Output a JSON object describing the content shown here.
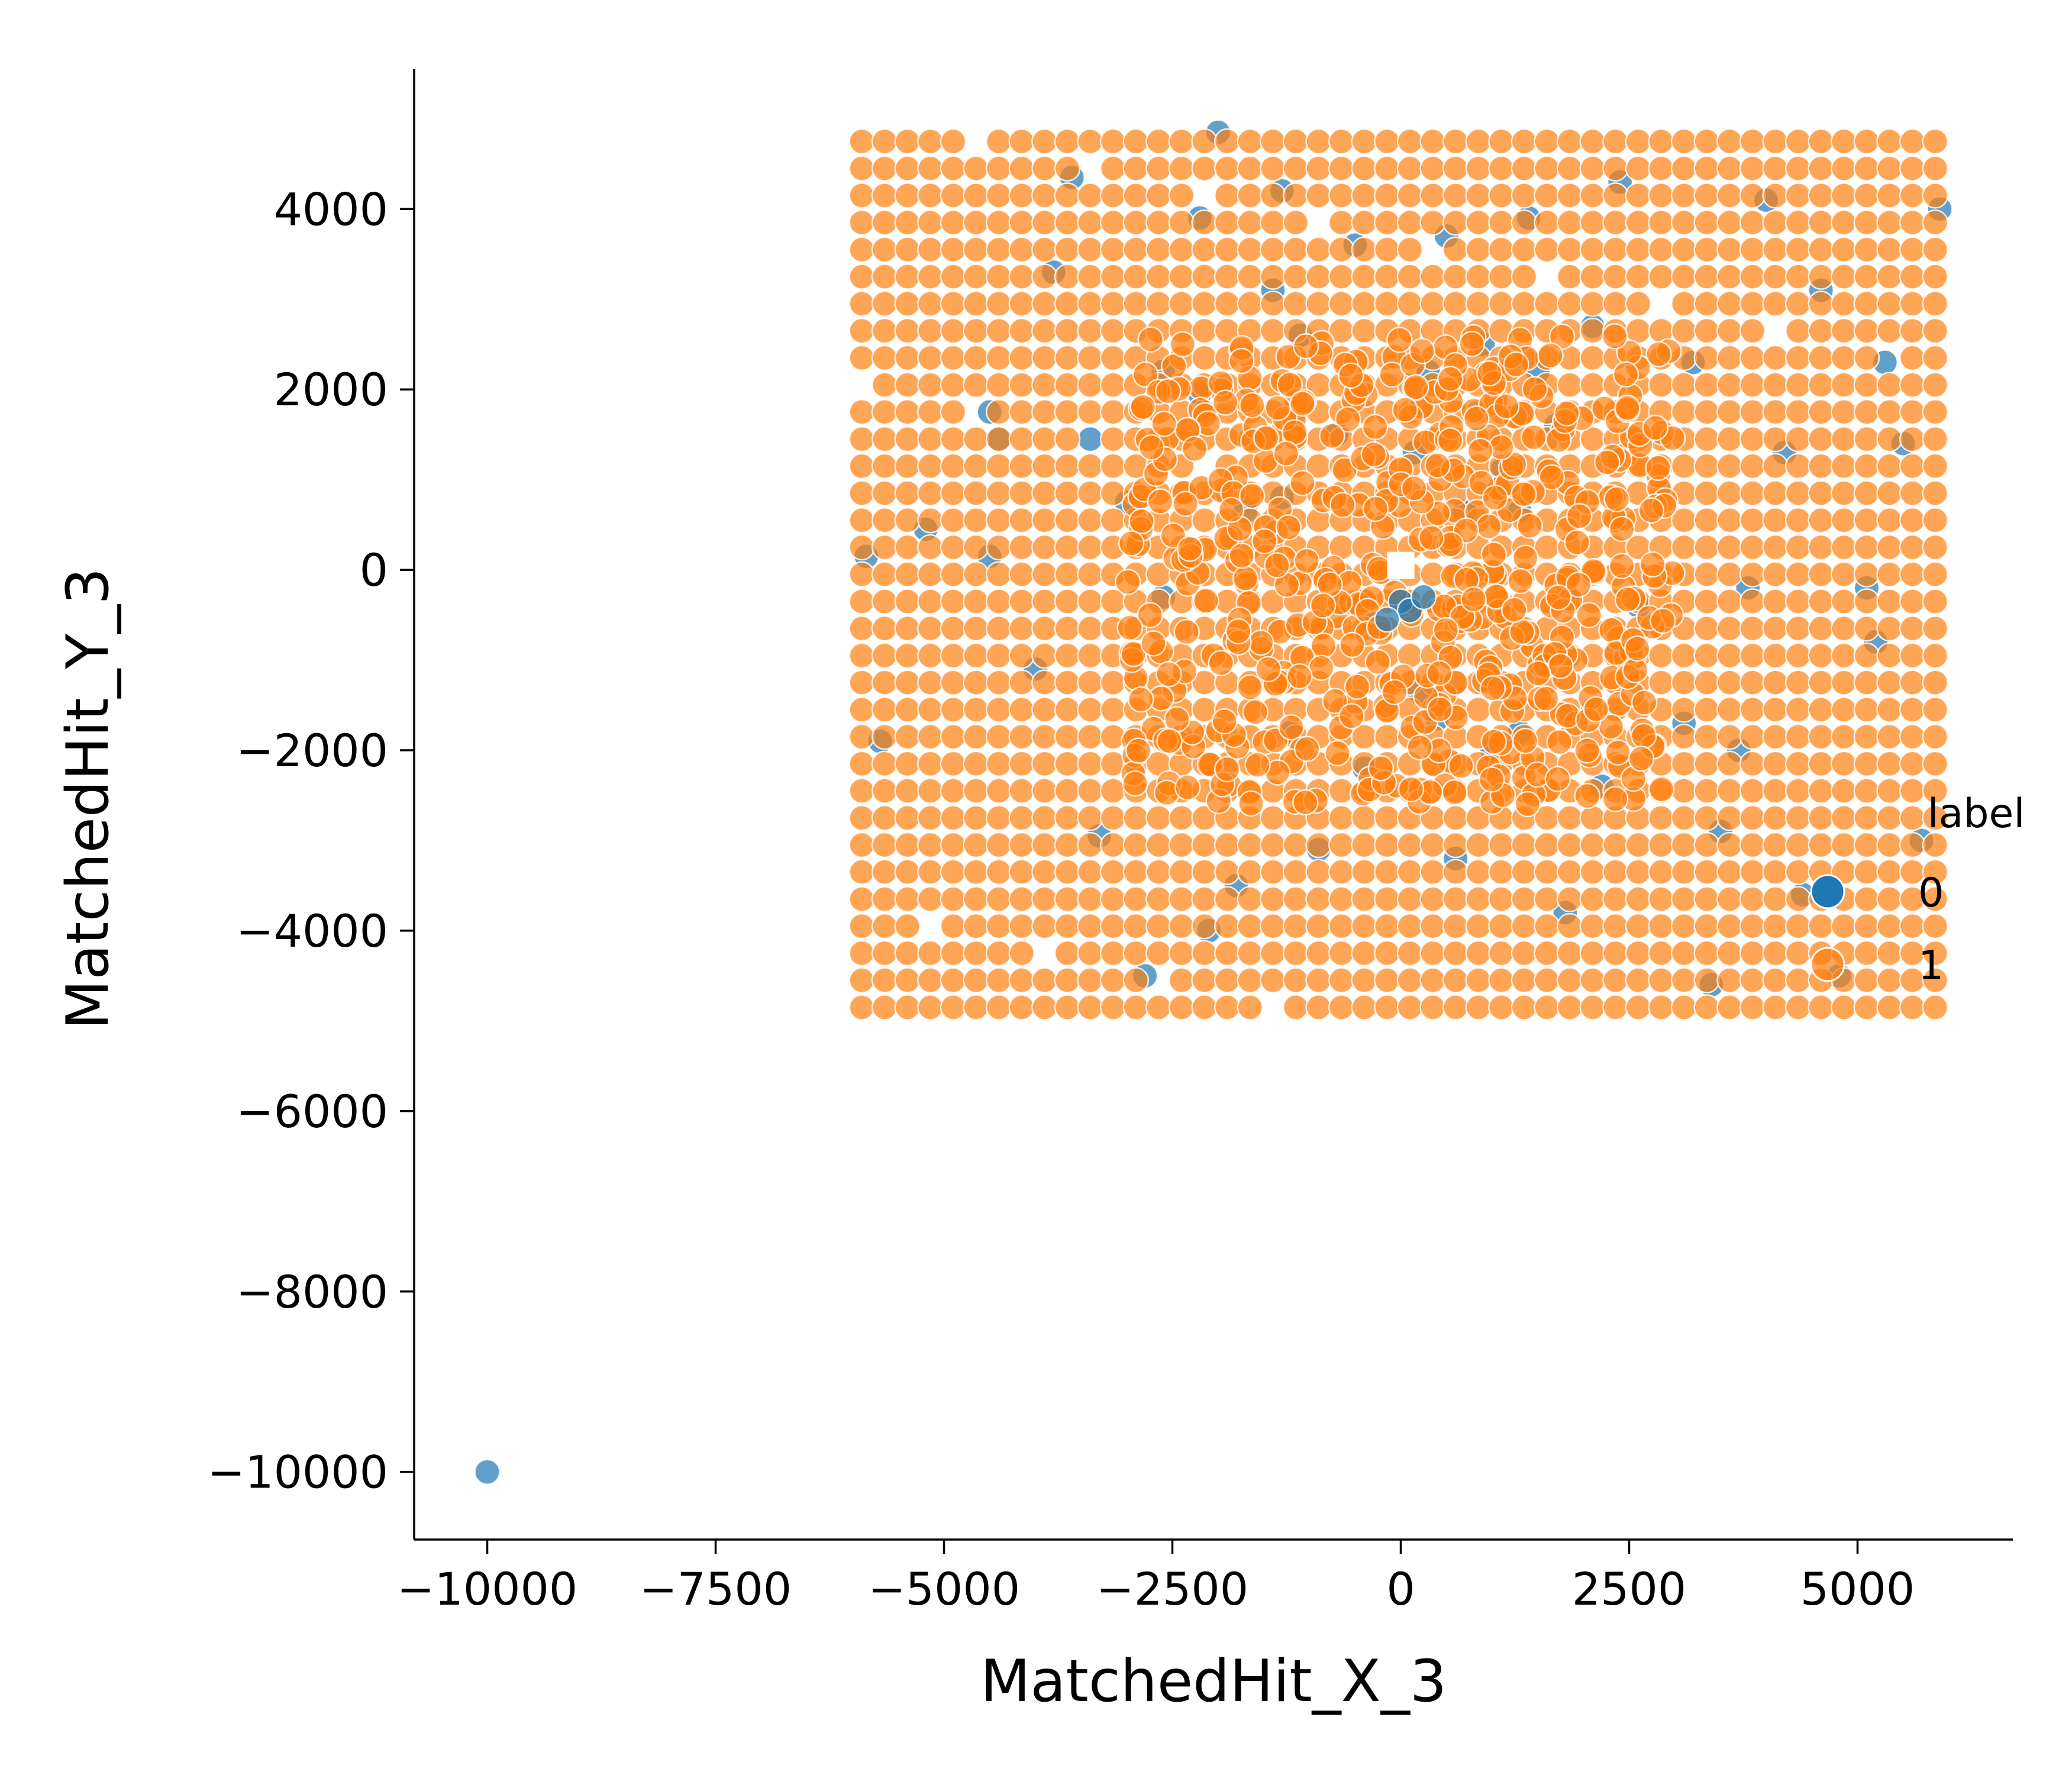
{
  "chart_data": {
    "type": "scatter",
    "title": "",
    "xlabel": "MatchedHit_X_3",
    "ylabel": "MatchedHit_Y_3",
    "xlim": [
      -10800,
      6700
    ],
    "ylim": [
      -10750,
      5550
    ],
    "xticks": [
      -10000,
      -7500,
      -5000,
      -2500,
      0,
      2500,
      5000
    ],
    "yticks": [
      -10000,
      -8000,
      -6000,
      -4000,
      -2000,
      0,
      2000,
      4000
    ],
    "xtick_labels": [
      "−10000",
      "−7500",
      "−5000",
      "−2500",
      "0",
      "2500",
      "5000"
    ],
    "ytick_labels": [
      "−10000",
      "−8000",
      "−6000",
      "−4000",
      "−2000",
      "0",
      "2000",
      "4000"
    ],
    "grid": false,
    "legend": {
      "title": "label",
      "placement": "right",
      "entries": [
        "0",
        "1"
      ]
    },
    "colors": {
      "0": "#1f77b4",
      "1": "#ff7f0e"
    },
    "point_alpha": 0.7,
    "series": [
      {
        "name": "0",
        "label_value": 0,
        "points": [
          [
            -10000,
            -10000
          ],
          [
            -5850,
            150
          ],
          [
            -5700,
            -1900
          ],
          [
            -5200,
            450
          ],
          [
            -4500,
            150
          ],
          [
            -4500,
            1750
          ],
          [
            -4400,
            1450
          ],
          [
            -4000,
            -1100
          ],
          [
            -3800,
            3300
          ],
          [
            -3600,
            4350
          ],
          [
            -3400,
            1450
          ],
          [
            -3300,
            -2950
          ],
          [
            -3000,
            750
          ],
          [
            -2800,
            -4500
          ],
          [
            -2600,
            -300
          ],
          [
            -2600,
            2200
          ],
          [
            -2200,
            3900
          ],
          [
            -2200,
            1950
          ],
          [
            -2100,
            -4000
          ],
          [
            -2000,
            4850
          ],
          [
            -1800,
            -3500
          ],
          [
            -1700,
            650
          ],
          [
            -1400,
            3100
          ],
          [
            -1300,
            4200
          ],
          [
            -1300,
            800
          ],
          [
            -1200,
            -1800
          ],
          [
            -1100,
            2600
          ],
          [
            -900,
            -3100
          ],
          [
            -700,
            1500
          ],
          [
            -500,
            3600
          ],
          [
            -400,
            -2200
          ],
          [
            -300,
            -600
          ],
          [
            0,
            -350
          ],
          [
            100,
            -450
          ],
          [
            150,
            1300
          ],
          [
            200,
            -1350
          ],
          [
            300,
            2200
          ],
          [
            400,
            -1650
          ],
          [
            500,
            3700
          ],
          [
            600,
            -3200
          ],
          [
            700,
            650
          ],
          [
            900,
            2500
          ],
          [
            1000,
            -2000
          ],
          [
            1100,
            1100
          ],
          [
            1300,
            -1800
          ],
          [
            1300,
            650
          ],
          [
            1400,
            3900
          ],
          [
            1500,
            2200
          ],
          [
            1700,
            1600
          ],
          [
            1800,
            -3800
          ],
          [
            2100,
            2700
          ],
          [
            2200,
            -2400
          ],
          [
            2400,
            4300
          ],
          [
            2600,
            -400
          ],
          [
            3100,
            -1700
          ],
          [
            3200,
            2300
          ],
          [
            3400,
            -4600
          ],
          [
            3500,
            -2900
          ],
          [
            3700,
            -2000
          ],
          [
            3800,
            -200
          ],
          [
            4000,
            4100
          ],
          [
            4200,
            1300
          ],
          [
            4400,
            -3600
          ],
          [
            4600,
            3100
          ],
          [
            4800,
            -4500
          ],
          [
            5100,
            -200
          ],
          [
            5200,
            -800
          ],
          [
            5300,
            2300
          ],
          [
            5500,
            1400
          ],
          [
            5700,
            -3000
          ],
          [
            5900,
            4000
          ]
        ]
      },
      {
        "name": "1",
        "label_value": 1,
        "grid_points": {
          "x_from": -5900,
          "x_to": 5900,
          "x_step": 250,
          "y_from": -4850,
          "y_to": 4850,
          "y_step": 300
        },
        "core_cluster": {
          "x_center": 0,
          "y_center": 0,
          "x_span": 3000,
          "y_span": 2600,
          "hole_half_width": 200
        },
        "note": "points (grid tiled) shown in the orange block"
      }
    ]
  }
}
